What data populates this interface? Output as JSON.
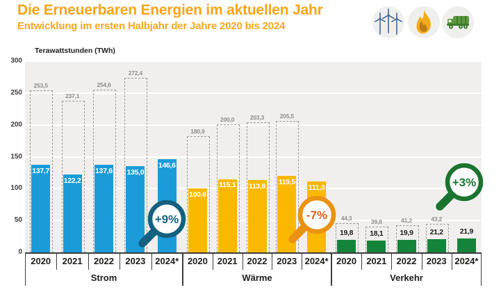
{
  "header": {
    "title": "Die Erneuerbaren Energien im aktuellen Jahr",
    "subtitle": "Entwicklung im ersten Halbjahr der Jahre 2020 bis 2024",
    "title_color": "#F9A41B",
    "icons": [
      "wind-turbines-icon",
      "flame-icon",
      "truck-icon"
    ]
  },
  "chart_data": {
    "type": "bar",
    "title": "Die Erneuerbaren Energien im aktuellen Jahr",
    "subtitle": "Entwicklung im ersten Halbjahr der Jahre 2020 bis 2024",
    "ylabel": "Terawattstunden (TWh)",
    "ylim": [
      0,
      300
    ],
    "yticks": [
      "0",
      "50",
      "100",
      "150",
      "200",
      "250",
      "300"
    ],
    "grid": "horizontal",
    "categories": [
      "2020",
      "2021",
      "2022",
      "2023",
      "2024*"
    ],
    "plot_bg": "#F0EFED",
    "outline_color": "#9C9C9A",
    "groups": [
      {
        "label": "Strom",
        "color": "#1B9CD9",
        "value_text_color": "#FFFFFF",
        "value_label_position": "inside",
        "half_year_values": [
          137.7,
          122.2,
          137.6,
          135.0,
          146.6
        ],
        "half_year_labels": [
          "137,7",
          "122,2",
          "137,6",
          "135,0",
          "146,6"
        ],
        "full_year_values": [
          253.5,
          237.1,
          254.6,
          272.4,
          null
        ],
        "full_year_labels": [
          "253,5",
          "237,1",
          "254,6",
          "272,4",
          null
        ],
        "badge": {
          "text": "+9%",
          "ring_color": "#14607F",
          "text_color": "#14607F"
        }
      },
      {
        "label": "Wärme",
        "color": "#FBB800",
        "value_text_color": "#FFFFFF",
        "value_label_position": "inside",
        "half_year_values": [
          100.6,
          115.1,
          113.8,
          119.5,
          111.3
        ],
        "half_year_labels": [
          "100,6",
          "115,1",
          "113,8",
          "119,5",
          "111,3"
        ],
        "full_year_values": [
          180.9,
          200.0,
          203.3,
          205.5,
          null
        ],
        "full_year_labels": [
          "180,9",
          "200,0",
          "203,3",
          "205,5",
          null
        ],
        "badge": {
          "text": "-7%",
          "ring_color": "#EA9211",
          "text_color": "#E2611B"
        }
      },
      {
        "label": "Verkehr",
        "color": "#15843B",
        "value_text_color": "#1D1D1B",
        "value_label_position": "above",
        "half_year_values": [
          19.8,
          18.1,
          19.9,
          21.2,
          21.9
        ],
        "half_year_labels": [
          "19,8",
          "18,1",
          "19,9",
          "21,2",
          "21,9"
        ],
        "full_year_values": [
          44.3,
          39.8,
          41.2,
          43.2,
          null
        ],
        "full_year_labels": [
          "44,3",
          "39,8",
          "41,2",
          "43,2",
          null
        ],
        "badge": {
          "text": "+3%",
          "ring_color": "#1A7430",
          "text_color": "#1A7430"
        }
      }
    ]
  }
}
